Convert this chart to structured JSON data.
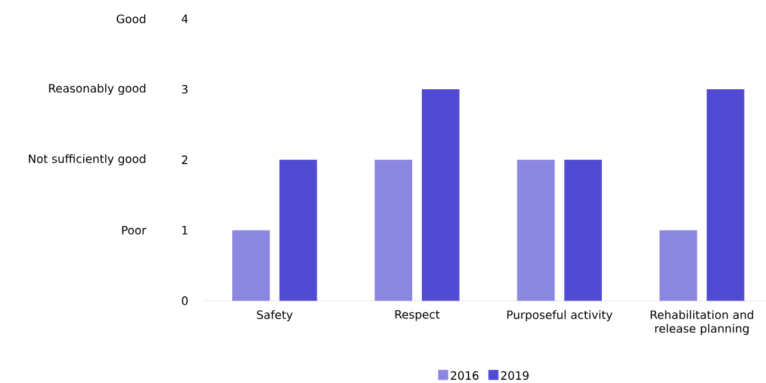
{
  "chart_data": {
    "type": "bar",
    "categories": [
      "Safety",
      "Respect",
      "Purposeful activity",
      "Rehabilitation and release planning"
    ],
    "series": [
      {
        "name": "2016",
        "color": "#8b86e0",
        "values": [
          1,
          2,
          2,
          1
        ]
      },
      {
        "name": "2019",
        "color": "#514bd4",
        "values": [
          2,
          3,
          2,
          3
        ]
      }
    ],
    "ylim": [
      0,
      4
    ],
    "yticks": [
      0,
      1,
      2,
      3,
      4
    ],
    "annotations": [
      "Poor",
      "Not sufficiently good",
      "Reasonably good",
      "Good"
    ],
    "grid": false,
    "legend": "bottom"
  }
}
